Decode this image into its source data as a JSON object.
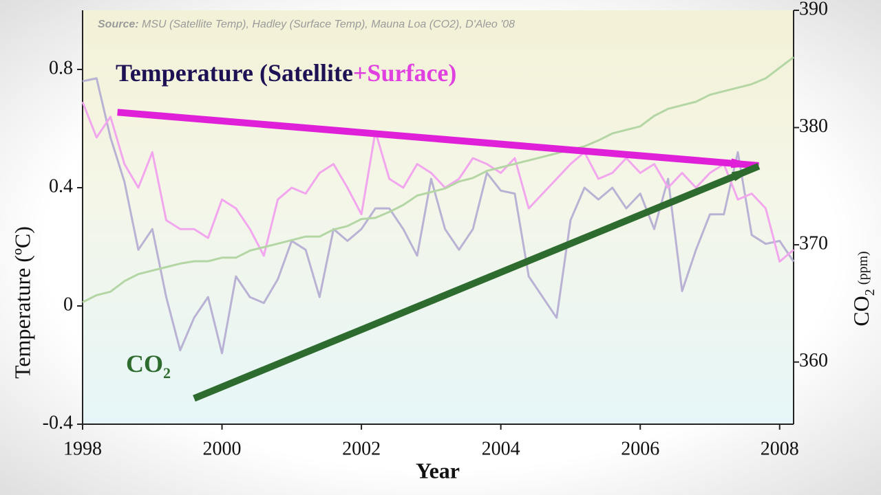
{
  "chart_data": {
    "type": "line",
    "source_label": "Source:",
    "source": "MSU (Satellite Temp), Hadley (Surface Temp), Mauna Loa (CO2), D'Aleo '08",
    "title_parts": [
      {
        "text": "Temperature (Satellite",
        "color": "#1e1254"
      },
      {
        "text": "+Surface)",
        "color": "#e040e0"
      }
    ],
    "xlabel": "Year",
    "ylabel": "Temperature (ºC)",
    "y2label": {
      "main": "CO",
      "sub": "2",
      "unit": "(ppm)"
    },
    "co2_label": {
      "main": "CO",
      "sub": "2",
      "color": "#2e6b2e"
    },
    "x": [
      1998,
      1998.2,
      1998.4,
      1998.6,
      1998.8,
      1999,
      1999.2,
      1999.4,
      1999.6,
      1999.8,
      2000,
      2000.2,
      2000.4,
      2000.6,
      2000.8,
      2001,
      2001.2,
      2001.4,
      2001.6,
      2001.8,
      2002,
      2002.2,
      2002.4,
      2002.6,
      2002.8,
      2003,
      2003.2,
      2003.4,
      2003.6,
      2003.8,
      2004,
      2004.2,
      2004.4,
      2004.6,
      2004.8,
      2005,
      2005.2,
      2005.4,
      2005.6,
      2005.8,
      2006,
      2006.2,
      2006.4,
      2006.6,
      2006.8,
      2007,
      2007.2,
      2007.4,
      2007.6,
      2007.8,
      2008,
      2008.2
    ],
    "xlim": [
      1998,
      2008.2
    ],
    "xticks": [
      1998,
      2000,
      2002,
      2004,
      2006,
      2008
    ],
    "ylim": [
      -0.4,
      1.0
    ],
    "yticks": [
      -0.4,
      0,
      0.4,
      0.8
    ],
    "y2lim": [
      354.7,
      390
    ],
    "y2ticks": [
      360,
      370,
      380,
      390
    ],
    "series": [
      {
        "color": "#b9b2d4",
        "values": [
          0.76,
          0.77,
          0.57,
          0.42,
          0.19,
          0.26,
          0.03,
          -0.15,
          -0.04,
          0.03,
          -0.16,
          0.1,
          0.03,
          0.01,
          0.09,
          0.22,
          0.19,
          0.03,
          0.26,
          0.22,
          0.26,
          0.33,
          0.33,
          0.26,
          0.17,
          0.43,
          0.26,
          0.19,
          0.26,
          0.45,
          0.39,
          0.38,
          0.1,
          0.03,
          -0.04,
          0.29,
          0.4,
          0.36,
          0.4,
          0.33,
          0.38,
          0.26,
          0.43,
          0.05,
          0.19,
          0.31,
          0.31,
          0.52,
          0.24,
          0.21,
          0.22,
          0.15
        ]
      },
      {
        "color": "#f2a6ee",
        "values": [
          0.69,
          0.57,
          0.64,
          0.48,
          0.4,
          0.52,
          0.29,
          0.26,
          0.26,
          0.23,
          0.36,
          0.33,
          0.26,
          0.17,
          0.36,
          0.4,
          0.38,
          0.45,
          0.48,
          0.4,
          0.31,
          0.59,
          0.43,
          0.4,
          0.48,
          0.45,
          0.4,
          0.43,
          0.5,
          0.48,
          0.45,
          0.5,
          0.33,
          0.38,
          0.43,
          0.48,
          0.52,
          0.43,
          0.45,
          0.5,
          0.45,
          0.48,
          0.4,
          0.45,
          0.4,
          0.45,
          0.48,
          0.36,
          0.38,
          0.33,
          0.15,
          0.19
        ]
      },
      {
        "color": "#b4d6a4",
        "axis": "y2",
        "values": [
          365.1,
          365.7,
          366.0,
          366.9,
          367.5,
          367.8,
          368.1,
          368.4,
          368.6,
          368.6,
          368.9,
          368.9,
          369.5,
          369.8,
          370.1,
          370.4,
          370.7,
          370.7,
          371.3,
          371.6,
          372.2,
          372.3,
          372.8,
          373.4,
          374.2,
          374.5,
          374.8,
          375.4,
          375.7,
          376.3,
          376.6,
          376.9,
          377.2,
          377.5,
          377.8,
          378.1,
          378.4,
          378.9,
          379.5,
          379.8,
          380.1,
          381.0,
          381.6,
          381.9,
          382.2,
          382.8,
          383.1,
          383.4,
          383.7,
          384.2,
          385.1,
          386.0
        ]
      }
    ],
    "trends": [
      {
        "color": "#e020d8",
        "x": [
          1998.5,
          2007.7
        ],
        "values": [
          0.655,
          0.475
        ]
      },
      {
        "color": "#2e6b2e",
        "axis": "y2",
        "x": [
          1999.6,
          2007.7
        ],
        "values": [
          356.9,
          376.7
        ]
      }
    ]
  }
}
